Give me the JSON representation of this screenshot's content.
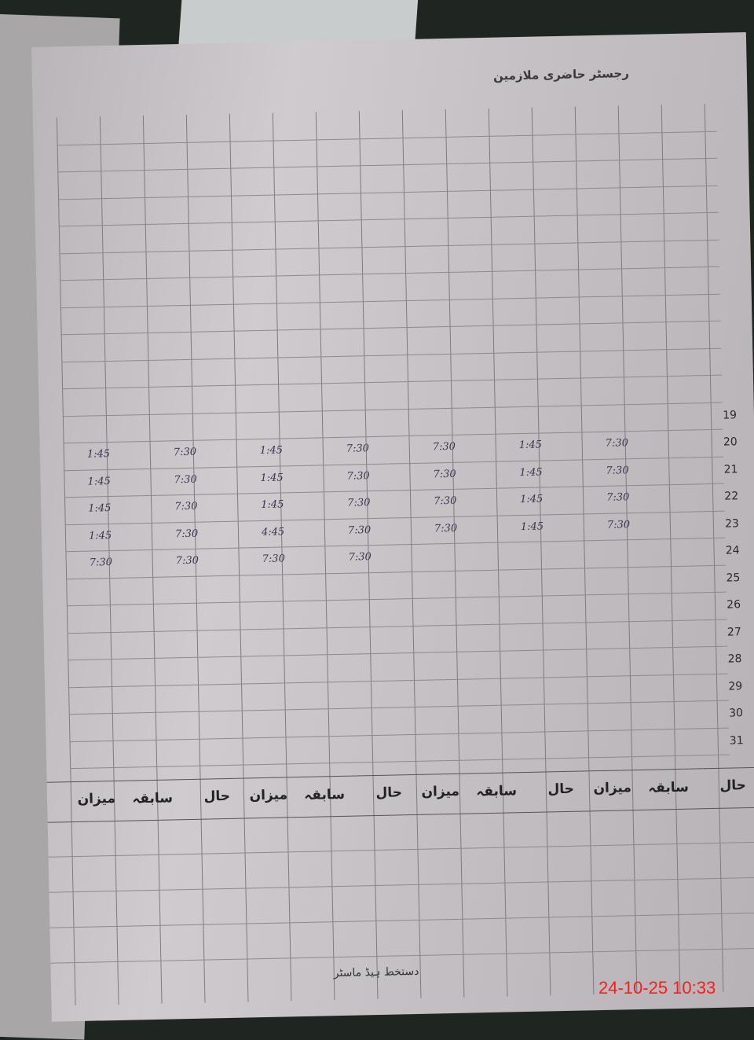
{
  "document": {
    "title": "رجسٹر حاضری ملازمین",
    "row_numbers": [
      "19",
      "20",
      "21",
      "22",
      "23",
      "24",
      "25",
      "26",
      "27",
      "28",
      "29",
      "30",
      "31"
    ],
    "entries": [
      {
        "row": "20",
        "times": [
          "1:45",
          "7:30",
          "1:45",
          "7:30",
          "7:30",
          "1:45",
          "7:30"
        ]
      },
      {
        "row": "21",
        "times": [
          "1:45",
          "7:30",
          "1:45",
          "7:30",
          "7:30",
          "1:45",
          "7:30"
        ]
      },
      {
        "row": "22",
        "times": [
          "1:45",
          "7:30",
          "1:45",
          "7:30",
          "7:30",
          "1:45",
          "7:30"
        ]
      },
      {
        "row": "23",
        "times": [
          "1:45",
          "7:30",
          "4:45",
          "7:30",
          "7:30",
          "1:45",
          "7:30"
        ]
      },
      {
        "row": "24",
        "times": [
          "7:30",
          "7:30",
          "7:30",
          "7:30"
        ]
      }
    ],
    "summary_headers": [
      "حال",
      "سابقہ",
      "میزان",
      "حال",
      "سابقہ",
      "میزان",
      "حال",
      "سابقہ",
      "میزان",
      "حال",
      "سابقہ",
      "میزان"
    ],
    "footer_signature": "دستخط ہیڈ ماسٹر"
  },
  "camera_stamp": "24-10-25  10:33",
  "colors": {
    "stamp": "#ff1a1a",
    "paper": "#c6c2c6",
    "background": "#1f2622"
  }
}
